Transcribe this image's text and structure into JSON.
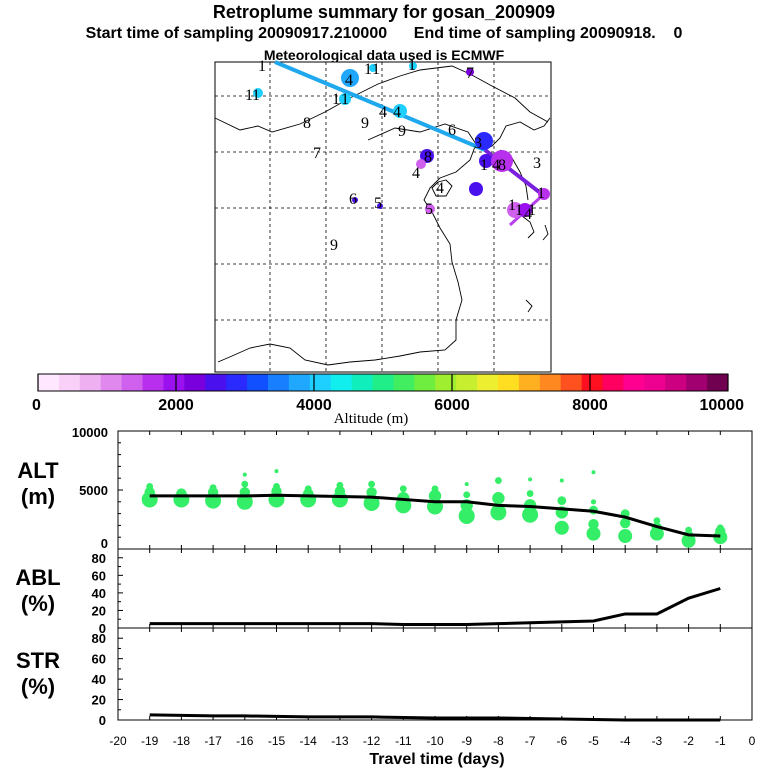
{
  "header": {
    "title": "Retroplume summary for gosan_200909",
    "start_label": "Start time of sampling 20090917.210000",
    "end_label": "End time of sampling 20090918.",
    "end_suffix": "0",
    "met_label": "Meteorological data used is ECMWF"
  },
  "colors": {
    "alt_markers": "#33ee66",
    "line": "#000000",
    "track_light": "#1fa8ee",
    "track_dark": "#7a1fdd"
  },
  "colorbar": {
    "label": "Altitude (m)",
    "ticks": [
      "0",
      "2000",
      "4000",
      "6000",
      "8000",
      "10000"
    ],
    "colors": [
      "#ffe8ff",
      "#f8d0f8",
      "#eeb0f0",
      "#e088ee",
      "#d060ee",
      "#b830ee",
      "#9a10ee",
      "#7a00dd",
      "#4a10ee",
      "#2a2aff",
      "#1050ff",
      "#1880ff",
      "#20a8ff",
      "#1ed0ff",
      "#10eeee",
      "#10eebb",
      "#20ee88",
      "#40ee60",
      "#70ee40",
      "#a0ee30",
      "#c8ee30",
      "#eeee30",
      "#ffdd20",
      "#ffb020",
      "#ff8820",
      "#ff5020",
      "#ff1020",
      "#ff0060",
      "#ff0090",
      "#ee0090",
      "#cc0080",
      "#a00070",
      "#700050"
    ]
  },
  "map": {
    "labels": [
      "1",
      "4",
      "1",
      "1",
      "1",
      "1",
      "7",
      "1",
      "4",
      "1",
      "4",
      "1",
      "8",
      "9",
      "9",
      "6",
      "7",
      "8",
      "4",
      "3",
      "4",
      "6",
      "5",
      "5",
      "8",
      "1",
      "1",
      "4",
      "4",
      "9",
      "3",
      "1",
      "1",
      "1"
    ]
  },
  "chart_data": [
    {
      "type": "scatter",
      "panel": "ALT",
      "ylabel": "ALT",
      "yunit": "(m)",
      "xlabel": "Travel time (days)",
      "xlim": [
        -20,
        0
      ],
      "ylim": [
        0,
        10000
      ],
      "yticks": [
        "10000",
        "5000",
        "0"
      ],
      "xtick_labels": [
        "-20",
        "-19",
        "-18",
        "-17",
        "-16",
        "-15",
        "-14",
        "-13",
        "-12",
        "-11",
        "-10",
        "-9",
        "-8",
        "-7",
        "-6",
        "-5",
        "-4",
        "-3",
        "-2",
        "-1",
        "0"
      ],
      "line": {
        "x": [
          -19,
          -18,
          -17,
          -16,
          -15,
          -14,
          -13,
          -12,
          -11,
          -10,
          -9,
          -8,
          -7,
          -6,
          -5,
          -4,
          -3,
          -2,
          -1
        ],
        "y": [
          4500,
          4500,
          4500,
          4500,
          4550,
          4500,
          4450,
          4400,
          4200,
          4000,
          4000,
          3700,
          3600,
          3400,
          3200,
          2700,
          1900,
          1200,
          1100
        ]
      },
      "cluster_points": [
        {
          "x": -19,
          "y": [
            4200,
            4800,
            5300
          ]
        },
        {
          "x": -18,
          "y": [
            4200,
            4700
          ]
        },
        {
          "x": -17,
          "y": [
            4100,
            4800,
            5200
          ]
        },
        {
          "x": -16,
          "y": [
            4000,
            4800,
            5500,
            6300
          ]
        },
        {
          "x": -15,
          "y": [
            4200,
            4900,
            5300,
            6600
          ]
        },
        {
          "x": -14,
          "y": [
            4200,
            4700,
            5100
          ]
        },
        {
          "x": -13,
          "y": [
            4200,
            4900,
            5400
          ]
        },
        {
          "x": -12,
          "y": [
            3900,
            4800,
            5500
          ]
        },
        {
          "x": -11,
          "y": [
            3700,
            4300,
            5100
          ]
        },
        {
          "x": -10,
          "y": [
            3600,
            4500,
            5100
          ]
        },
        {
          "x": -9,
          "y": [
            2800,
            3700,
            4600,
            5500
          ]
        },
        {
          "x": -8,
          "y": [
            3100,
            4300,
            5800
          ]
        },
        {
          "x": -7,
          "y": [
            2900,
            3700,
            4700,
            5900
          ]
        },
        {
          "x": -6,
          "y": [
            1800,
            3100,
            4100,
            5800
          ]
        },
        {
          "x": -5,
          "y": [
            1300,
            2100,
            3300,
            4000,
            6500
          ]
        },
        {
          "x": -4,
          "y": [
            1100,
            2200,
            3000
          ]
        },
        {
          "x": -3,
          "y": [
            1300,
            1800,
            2400
          ]
        },
        {
          "x": -2,
          "y": [
            700,
            1100,
            1600
          ]
        },
        {
          "x": -1,
          "y": [
            1000,
            1500,
            1800
          ]
        }
      ]
    },
    {
      "type": "line",
      "panel": "ABL",
      "ylabel": "ABL",
      "yunit": "(%)",
      "ylim": [
        0,
        90
      ],
      "yticks": [
        "80",
        "60",
        "40",
        "20",
        "0"
      ],
      "x": [
        -19,
        -18,
        -17,
        -16,
        -15,
        -14,
        -13,
        -12,
        -11,
        -10,
        -9,
        -8,
        -7,
        -6,
        -5,
        -4,
        -3,
        -2,
        -1
      ],
      "y": [
        5,
        5,
        5,
        5,
        5,
        5,
        5,
        5,
        4,
        4,
        4,
        5,
        6,
        7,
        8,
        16,
        16,
        34,
        45
      ]
    },
    {
      "type": "line",
      "panel": "STR",
      "ylabel": "STR",
      "yunit": "(%)",
      "ylim": [
        0,
        90
      ],
      "yticks": [
        "80",
        "60",
        "40",
        "20",
        "0"
      ],
      "x": [
        -19,
        -18,
        -17,
        -16,
        -15,
        -14,
        -13,
        -12,
        -11,
        -10,
        -9,
        -8,
        -7,
        -6,
        -5,
        -4,
        -3,
        -2,
        -1
      ],
      "y": [
        5,
        4.5,
        4,
        4,
        3.5,
        3,
        3,
        3,
        2.5,
        2,
        2,
        2,
        1.5,
        1,
        0.5,
        0,
        0,
        0,
        0
      ]
    }
  ]
}
